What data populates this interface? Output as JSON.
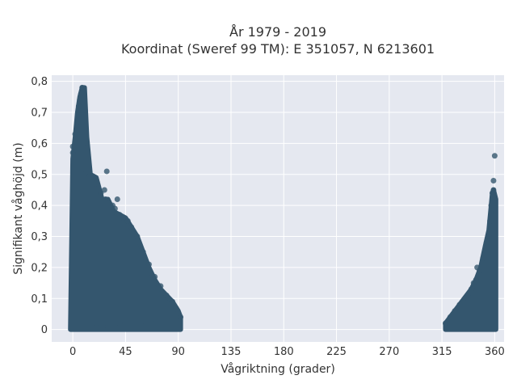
{
  "chart_data": {
    "type": "scatter",
    "title_line1": "År 1979 - 2019",
    "title_line2": "Koordinat (Sweref 99 TM): E 351057, N 6213601",
    "xlabel": "Vågriktning (grader)",
    "ylabel": "Signifikant våghöjd (m)",
    "xlim": [
      -18,
      368
    ],
    "ylim": [
      -0.04,
      0.82
    ],
    "xticks": [
      {
        "value": 0,
        "label": "0"
      },
      {
        "value": 45,
        "label": "45"
      },
      {
        "value": 90,
        "label": "90"
      },
      {
        "value": 135,
        "label": "135"
      },
      {
        "value": 180,
        "label": "180"
      },
      {
        "value": 225,
        "label": "225"
      },
      {
        "value": 270,
        "label": "270"
      },
      {
        "value": 315,
        "label": "315"
      },
      {
        "value": 360,
        "label": "360"
      }
    ],
    "yticks": [
      {
        "value": 0,
        "label": "0"
      },
      {
        "value": 0.1,
        "label": "0,1"
      },
      {
        "value": 0.2,
        "label": "0,2"
      },
      {
        "value": 0.3,
        "label": "0,3"
      },
      {
        "value": 0.4,
        "label": "0,4"
      },
      {
        "value": 0.5,
        "label": "0,5"
      },
      {
        "value": 0.6,
        "label": "0,6"
      },
      {
        "value": 0.7,
        "label": "0,7"
      },
      {
        "value": 0.8,
        "label": "0,8"
      }
    ],
    "grid": true,
    "colors": {
      "marker": "#34566e",
      "plot_bg": "#e5e8f0",
      "grid": "#ffffff"
    },
    "clusters": [
      {
        "envelope": [
          [
            -2,
            0.0
          ],
          [
            0,
            0.55
          ],
          [
            2,
            0.62
          ],
          [
            4,
            0.7
          ],
          [
            6,
            0.75
          ],
          [
            8,
            0.78
          ],
          [
            10,
            0.78
          ],
          [
            12,
            0.62
          ],
          [
            15,
            0.5
          ],
          [
            20,
            0.49
          ],
          [
            25,
            0.42
          ],
          [
            30,
            0.42
          ],
          [
            35,
            0.38
          ],
          [
            40,
            0.37
          ],
          [
            45,
            0.36
          ],
          [
            50,
            0.33
          ],
          [
            55,
            0.3
          ],
          [
            60,
            0.25
          ],
          [
            65,
            0.2
          ],
          [
            70,
            0.16
          ],
          [
            75,
            0.13
          ],
          [
            80,
            0.11
          ],
          [
            85,
            0.09
          ],
          [
            90,
            0.06
          ],
          [
            92,
            0.04
          ]
        ],
        "points": [
          [
            8,
            0.78
          ],
          [
            9,
            0.77
          ],
          [
            7,
            0.76
          ],
          [
            6,
            0.74
          ],
          [
            5,
            0.72
          ],
          [
            0,
            0.59
          ],
          [
            0,
            0.57
          ],
          [
            2,
            0.63
          ],
          [
            10,
            0.5
          ],
          [
            15,
            0.49
          ],
          [
            20,
            0.47
          ],
          [
            24,
            0.44
          ],
          [
            27,
            0.45
          ],
          [
            28,
            0.42
          ],
          [
            29,
            0.51
          ],
          [
            34,
            0.4
          ],
          [
            36,
            0.39
          ],
          [
            38,
            0.42
          ],
          [
            40,
            0.37
          ],
          [
            43,
            0.36
          ],
          [
            47,
            0.35
          ],
          [
            50,
            0.33
          ],
          [
            55,
            0.3
          ],
          [
            60,
            0.25
          ],
          [
            65,
            0.21
          ],
          [
            70,
            0.17
          ],
          [
            75,
            0.14
          ],
          [
            80,
            0.11
          ],
          [
            85,
            0.09
          ],
          [
            88,
            0.07
          ],
          [
            90,
            0.05
          ],
          [
            92,
            0.04
          ],
          [
            20,
            0.02
          ],
          [
            30,
            0.01
          ],
          [
            40,
            0.02
          ],
          [
            60,
            0.01
          ],
          [
            70,
            0.02
          ],
          [
            80,
            0.03
          ]
        ]
      },
      {
        "envelope": [
          [
            318,
            0.02
          ],
          [
            320,
            0.03
          ],
          [
            324,
            0.05
          ],
          [
            328,
            0.07
          ],
          [
            332,
            0.09
          ],
          [
            336,
            0.11
          ],
          [
            340,
            0.13
          ],
          [
            344,
            0.16
          ],
          [
            348,
            0.2
          ],
          [
            352,
            0.27
          ],
          [
            355,
            0.32
          ],
          [
            357,
            0.4
          ],
          [
            358,
            0.44
          ],
          [
            359,
            0.45
          ],
          [
            361,
            0.42
          ],
          [
            361,
            0.0
          ]
        ],
        "points": [
          [
            360,
            0.56
          ],
          [
            359,
            0.48
          ],
          [
            358,
            0.44
          ],
          [
            359,
            0.45
          ],
          [
            357,
            0.4
          ],
          [
            356,
            0.35
          ],
          [
            355,
            0.3
          ],
          [
            353,
            0.28
          ],
          [
            350,
            0.23
          ],
          [
            347,
            0.19
          ],
          [
            344,
            0.16
          ],
          [
            340,
            0.13
          ],
          [
            337,
            0.11
          ],
          [
            333,
            0.09
          ],
          [
            330,
            0.08
          ],
          [
            326,
            0.06
          ],
          [
            322,
            0.04
          ],
          [
            318,
            0.02
          ],
          [
            345,
            0.2
          ],
          [
            342,
            0.15
          ]
        ]
      }
    ]
  }
}
